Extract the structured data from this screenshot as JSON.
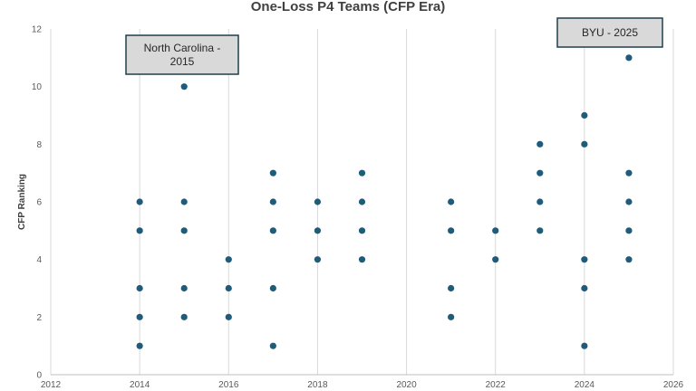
{
  "chart_data": {
    "type": "scatter",
    "title": "One-Loss P4 Teams (CFP Era)",
    "xlabel": "",
    "ylabel": "CFP Ranking",
    "xlim": [
      2012,
      2026
    ],
    "ylim": [
      0,
      12
    ],
    "x_ticks": [
      2012,
      2014,
      2016,
      2018,
      2020,
      2022,
      2024,
      2026
    ],
    "y_ticks": [
      0,
      2,
      4,
      6,
      8,
      10,
      12
    ],
    "grid": "vertical",
    "marker_color": "#1f5c7a",
    "points": [
      {
        "x": 2014,
        "y": 1
      },
      {
        "x": 2014,
        "y": 2
      },
      {
        "x": 2014,
        "y": 3
      },
      {
        "x": 2014,
        "y": 5
      },
      {
        "x": 2014,
        "y": 6
      },
      {
        "x": 2015,
        "y": 2
      },
      {
        "x": 2015,
        "y": 3
      },
      {
        "x": 2015,
        "y": 5
      },
      {
        "x": 2015,
        "y": 6
      },
      {
        "x": 2015,
        "y": 10
      },
      {
        "x": 2016,
        "y": 2
      },
      {
        "x": 2016,
        "y": 3
      },
      {
        "x": 2016,
        "y": 4
      },
      {
        "x": 2017,
        "y": 1
      },
      {
        "x": 2017,
        "y": 3
      },
      {
        "x": 2017,
        "y": 5
      },
      {
        "x": 2017,
        "y": 6
      },
      {
        "x": 2017,
        "y": 7
      },
      {
        "x": 2018,
        "y": 4
      },
      {
        "x": 2018,
        "y": 5
      },
      {
        "x": 2018,
        "y": 6
      },
      {
        "x": 2019,
        "y": 4
      },
      {
        "x": 2019,
        "y": 5
      },
      {
        "x": 2019,
        "y": 6
      },
      {
        "x": 2019,
        "y": 7
      },
      {
        "x": 2021,
        "y": 2
      },
      {
        "x": 2021,
        "y": 3
      },
      {
        "x": 2021,
        "y": 5
      },
      {
        "x": 2021,
        "y": 6
      },
      {
        "x": 2022,
        "y": 4
      },
      {
        "x": 2022,
        "y": 5
      },
      {
        "x": 2023,
        "y": 5
      },
      {
        "x": 2023,
        "y": 6
      },
      {
        "x": 2023,
        "y": 7
      },
      {
        "x": 2023,
        "y": 8
      },
      {
        "x": 2024,
        "y": 1
      },
      {
        "x": 2024,
        "y": 3
      },
      {
        "x": 2024,
        "y": 4
      },
      {
        "x": 2024,
        "y": 8
      },
      {
        "x": 2024,
        "y": 9
      },
      {
        "x": 2025,
        "y": 4
      },
      {
        "x": 2025,
        "y": 5
      },
      {
        "x": 2025,
        "y": 6
      },
      {
        "x": 2025,
        "y": 7
      },
      {
        "x": 2025,
        "y": 11
      }
    ],
    "annotations": [
      {
        "lines": [
          "North Carolina -",
          "2015"
        ],
        "x": 2015,
        "y": 10
      },
      {
        "lines": [
          "BYU - 2025"
        ],
        "x": 2025,
        "y": 11
      }
    ],
    "annotation_fill": "#d9d9d9",
    "annotation_border": "#1f3f4a"
  }
}
